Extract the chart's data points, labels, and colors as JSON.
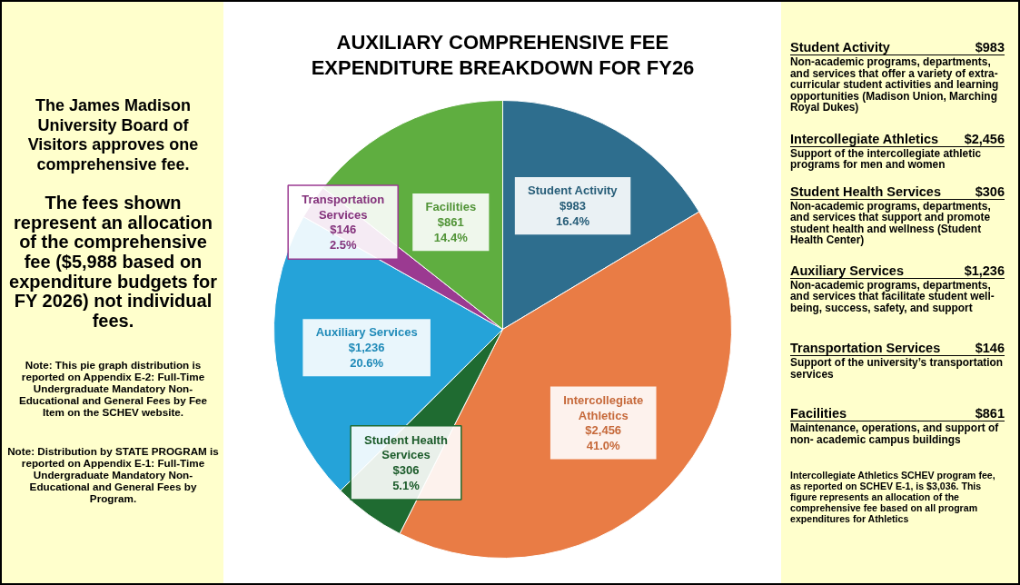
{
  "chart_data": {
    "type": "pie",
    "title": "AUXILIARY COMPREHENSIVE FEE EXPENDITURE BREAKDOWN FOR FY26",
    "categories": [
      "Student Activity",
      "Intercollegiate Athletics",
      "Student Health Services",
      "Auxiliary Services",
      "Transportation Services",
      "Facilities"
    ],
    "values": [
      983,
      2456,
      306,
      1236,
      146,
      861
    ],
    "colors": [
      "#2e6e8e",
      "#e97c45",
      "#1f6b31",
      "#25a3d9",
      "#9b3a91",
      "#5fae40"
    ],
    "value_labels": [
      "$983\n16.4%",
      "$2,456\n41.0%",
      "$306\n5.1%",
      "$1,236\n20.6%",
      "$146\n2.5%",
      "$861\n14.4%"
    ],
    "annotations": [
      "The James Madison University Board of Visitors approves one comprehensive fee.",
      "The fees shown represent an allocation of the comprehensive fee ($5,988 based on expenditure budgets for FY 2026) not individual fees.",
      "Note:  This pie graph distribution is reported on Appendix E-2: Full-Time Undergraduate Mandatory Non-Educational and General Fees by Fee Item on the SCHEV website.",
      "Note:  Distribution by STATE PROGRAM is reported on Appendix E-1: Full-Time Undergraduate Mandatory Non- Educational and General Fees by Program.",
      "$983",
      "Non-academic programs, departments, and services that offer a variety of extra-curricular student activities and learning opportunities (Madison Union, Marching Royal Dukes)",
      "$2,456",
      "Support of the intercollegiate athletic programs for men and women",
      "$306",
      "Non-academic programs, departments, and services that support and promote student health and wellness (Student Health Center)",
      "$1,236",
      "Non-academic programs, departments, and services that facilitate student well-being, success, safety, and support",
      "$146",
      "Support of the university’s transportation services",
      "$861",
      "Maintenance, operations, and support of non- academic campus buildings",
      "Intercollegiate Athletics SCHEV program fee, as reported on SCHEV E-1, is $3,036.  This figure represents an allocation of the comprehensive fee based on all program expenditures for Athletics"
    ]
  }
}
